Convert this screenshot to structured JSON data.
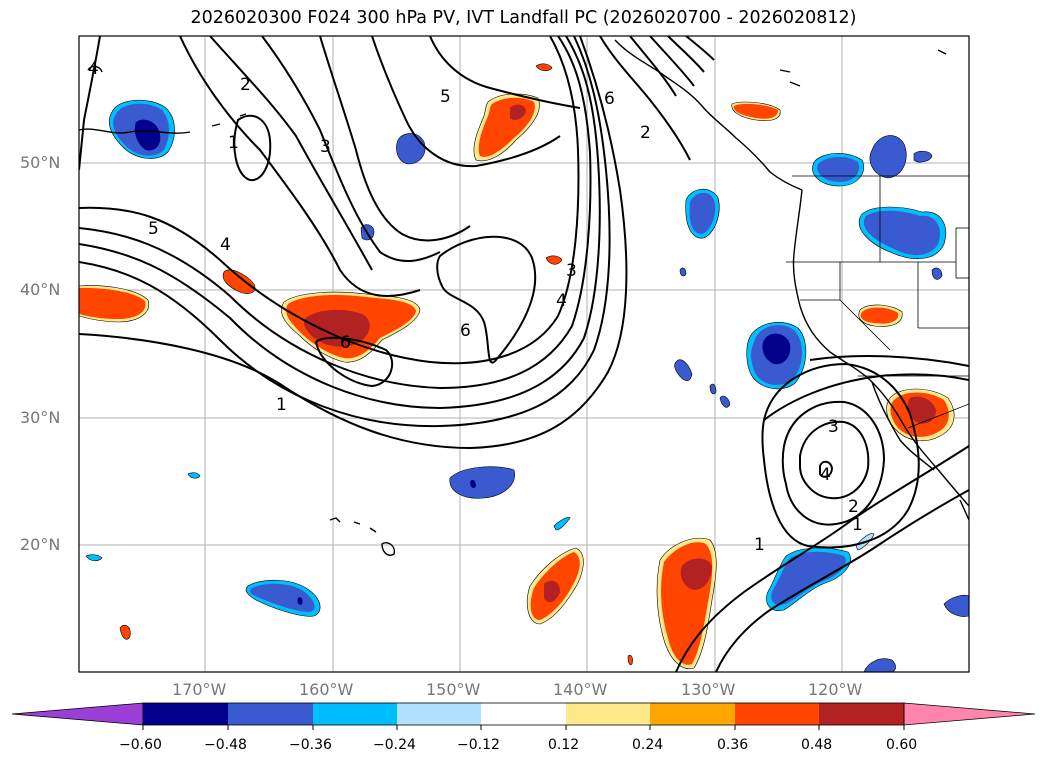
{
  "title": "2026020300 F024 300 hPa PV, IVT Landfall PC (2026020700 - 2026020812)",
  "lat_labels": [
    "50°N",
    "40°N",
    "30°N",
    "20°N"
  ],
  "lon_labels": [
    "170°W",
    "160°W",
    "150°W",
    "140°W",
    "130°W",
    "120°W"
  ],
  "contour_labels": [
    "1",
    "2",
    "3",
    "4",
    "5",
    "6",
    "5",
    "4",
    "3",
    "4",
    "6",
    "6",
    "2",
    "1",
    "3",
    "4",
    "2",
    "1",
    "1",
    "6",
    "4"
  ],
  "colorbar": {
    "ticks": [
      "−0.60",
      "−0.48",
      "−0.36",
      "−0.24",
      "−0.12",
      "0.12",
      "0.24",
      "0.36",
      "0.48",
      "0.60"
    ],
    "colors": {
      "under": "#9b3fd6",
      "bins": [
        "#00008b",
        "#3a5bd0",
        "#00bfff",
        "#b0e2ff",
        "#ffffff",
        "#ffe98a",
        "#ffa500",
        "#ff4500",
        "#b22222"
      ],
      "over": "#ff85aa"
    }
  },
  "colors": {
    "negative_strong": "#00008b",
    "negative": "#3a5bd0",
    "negative_light": "#00bfff",
    "positive_light": "#ffe98a",
    "positive": "#ff4500",
    "positive_strong": "#b22222"
  }
}
